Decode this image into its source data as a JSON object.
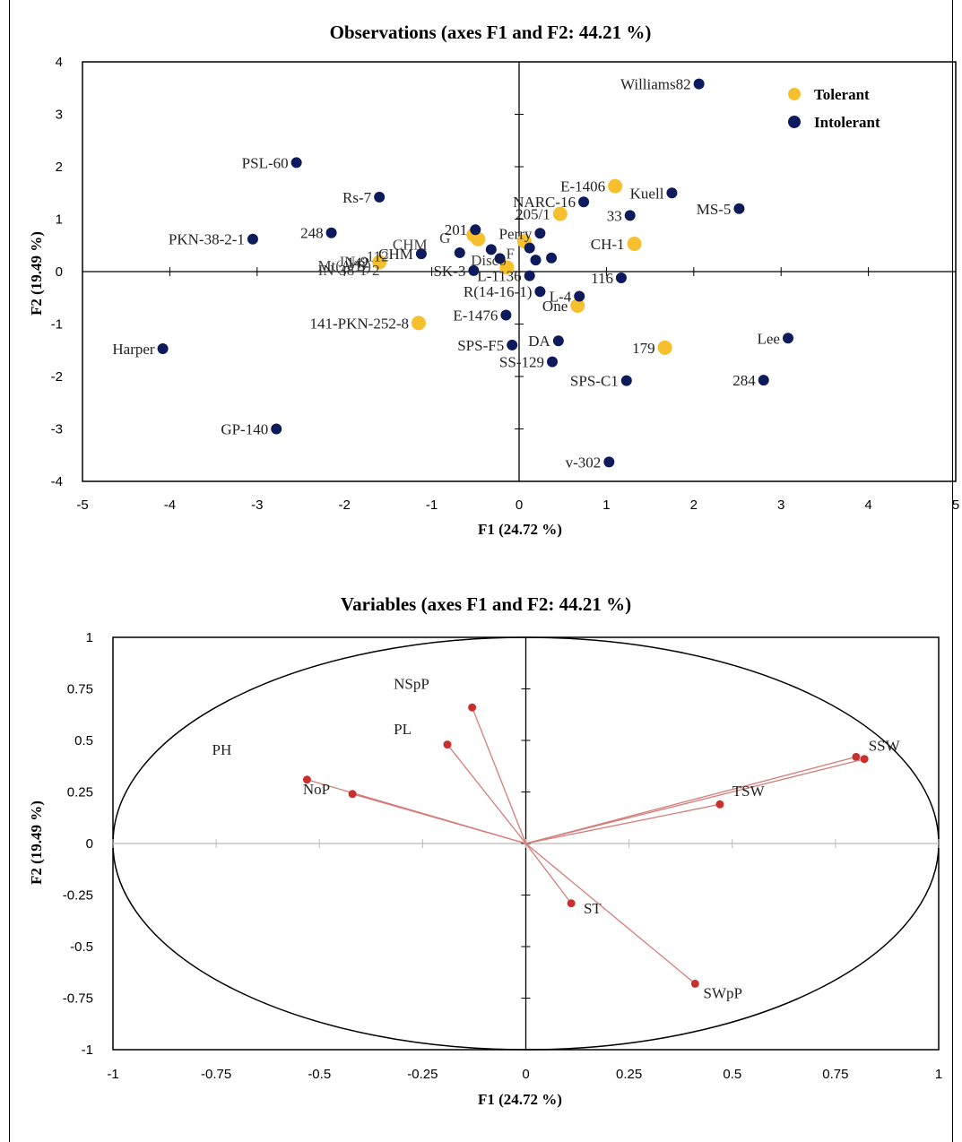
{
  "colors": {
    "tolerant": "#f5bf2e",
    "intolerant": "#0d1a5c",
    "vector": "#c7302f",
    "vector_line": "#d47c7a"
  },
  "chart_data": [
    {
      "type": "scatter",
      "title": "Observations (axes F1 and F2: 44.21 %)",
      "xlabel": "F1 (24.72 %)",
      "ylabel": "F2 (19.49 %)",
      "xlim": [
        -5,
        5
      ],
      "ylim": [
        -4,
        4
      ],
      "x_ticks": [
        "-5",
        "-4",
        "-3",
        "-2",
        "-1",
        "0",
        "1",
        "2",
        "3",
        "4",
        "5"
      ],
      "y_ticks": [
        "4",
        "3",
        "2",
        "1",
        "0",
        "-1",
        "-2",
        "-3",
        "-4"
      ],
      "legend": {
        "position": "top-right",
        "items": [
          {
            "name": "Tolerant",
            "key": "tolerant"
          },
          {
            "name": "Intolerant",
            "key": "intolerant"
          }
        ]
      },
      "series": [
        {
          "name": "Tolerant",
          "key": "tolerant",
          "points": [
            {
              "label": "E-1406",
              "x": 1.1,
              "y": 1.63
            },
            {
              "label": "205/1",
              "x": 0.47,
              "y": 1.1
            },
            {
              "label": "CH-1",
              "x": 1.32,
              "y": 0.53
            },
            {
              "label": "One",
              "x": 0.67,
              "y": -0.65
            },
            {
              "label": "179",
              "x": 1.67,
              "y": -1.45
            },
            {
              "label": "141-PKN-252-8",
              "x": -1.15,
              "y": -0.98
            },
            {
              "label": "142",
              "x": -1.6,
              "y": 0.18
            },
            {
              "label": "",
              "x": -0.52,
              "y": 0.7
            },
            {
              "label": "",
              "x": -0.47,
              "y": 0.62
            },
            {
              "label": "",
              "x": 0.06,
              "y": 0.58
            },
            {
              "label": "",
              "x": -0.14,
              "y": 0.08
            }
          ]
        },
        {
          "name": "Intolerant",
          "key": "intolerant",
          "points": [
            {
              "label": "Williams82",
              "x": 2.06,
              "y": 3.58
            },
            {
              "label": "PSL-60",
              "x": -2.55,
              "y": 2.08
            },
            {
              "label": "Rs-7",
              "x": -1.6,
              "y": 1.42
            },
            {
              "label": "Kuell",
              "x": 1.75,
              "y": 1.5
            },
            {
              "label": "NARC-16",
              "x": 0.74,
              "y": 1.33
            },
            {
              "label": "33",
              "x": 1.27,
              "y": 1.07
            },
            {
              "label": "MS-5",
              "x": 2.52,
              "y": 1.2
            },
            {
              "label": "248",
              "x": -2.15,
              "y": 0.74
            },
            {
              "label": "PKN-38-2-1",
              "x": -3.05,
              "y": 0.62
            },
            {
              "label": "201",
              "x": -0.5,
              "y": 0.8
            },
            {
              "label": "Perry",
              "x": 0.24,
              "y": 0.73
            },
            {
              "label": "CHM",
              "x": -1.12,
              "y": 0.34
            },
            {
              "label": "",
              "x": -0.68,
              "y": 0.36
            },
            {
              "label": "",
              "x": -0.32,
              "y": 0.42
            },
            {
              "label": "",
              "x": -0.22,
              "y": 0.25
            },
            {
              "label": "",
              "x": 0.12,
              "y": 0.45
            },
            {
              "label": "",
              "x": 0.19,
              "y": 0.22
            },
            {
              "label": "",
              "x": 0.37,
              "y": 0.26
            },
            {
              "label": "SK-3",
              "x": -0.52,
              "y": 0.02
            },
            {
              "label": "L-1136",
              "x": 0.12,
              "y": -0.08
            },
            {
              "label": "116",
              "x": 1.17,
              "y": -0.12
            },
            {
              "label": "R(14-16-1)",
              "x": 0.24,
              "y": -0.38
            },
            {
              "label": "L-4",
              "x": 0.69,
              "y": -0.47
            },
            {
              "label": "E-1476",
              "x": -0.15,
              "y": -0.83
            },
            {
              "label": "SPS-F5",
              "x": -0.08,
              "y": -1.4
            },
            {
              "label": "DA",
              "x": 0.45,
              "y": -1.32
            },
            {
              "label": "SS-129",
              "x": 0.38,
              "y": -1.72
            },
            {
              "label": "Harper",
              "x": -4.08,
              "y": -1.47
            },
            {
              "label": "Lee",
              "x": 3.08,
              "y": -1.27
            },
            {
              "label": "SPS-C1",
              "x": 1.23,
              "y": -2.08
            },
            {
              "label": "284",
              "x": 2.8,
              "y": -2.07
            },
            {
              "label": "GP-140",
              "x": -2.78,
              "y": -3.0
            },
            {
              "label": "v-302",
              "x": 1.03,
              "y": -3.63
            }
          ]
        }
      ],
      "overlap_labels": [
        {
          "label": "Mt(A/B)",
          "x": -2.0,
          "y": 0.12
        },
        {
          "label": "JN-9",
          "x": -1.9,
          "y": 0.2
        },
        {
          "label": "112",
          "x": -1.62,
          "y": 0.3
        },
        {
          "label": "IN-38-1-2",
          "x": -1.95,
          "y": 0.03
        },
        {
          "label": "CHM",
          "x": -1.25,
          "y": 0.52
        },
        {
          "label": "G",
          "x": -0.85,
          "y": 0.65
        },
        {
          "label": "Disco",
          "x": -0.35,
          "y": 0.22
        },
        {
          "label": "F",
          "x": -0.1,
          "y": 0.35
        }
      ]
    },
    {
      "type": "scatter",
      "title": "Variables (axes F1 and F2: 44.21 %)",
      "xlabel": "F1 (24.72 %)",
      "ylabel": "F2 (19.49 %)",
      "xlim": [
        -1,
        1
      ],
      "ylim": [
        -1,
        1
      ],
      "x_ticks": [
        "-1",
        "-0.75",
        "-0.5",
        "-0.25",
        "0",
        "0.25",
        "0.5",
        "0.75",
        "1"
      ],
      "y_ticks": [
        "1",
        "0.75",
        "0.5",
        "0.25",
        "0",
        "-0.25",
        "-0.5",
        "-0.75",
        "-1"
      ],
      "correlation_circle": true,
      "vectors": [
        {
          "label": "NSpP",
          "x": -0.13,
          "y": 0.66
        },
        {
          "label": "PL",
          "x": -0.19,
          "y": 0.48
        },
        {
          "label": "PH",
          "x": -0.53,
          "y": 0.31
        },
        {
          "label": "NoP",
          "x": -0.42,
          "y": 0.24
        },
        {
          "label": "SSW",
          "x": 0.8,
          "y": 0.42
        },
        {
          "label": "",
          "x": 0.82,
          "y": 0.41
        },
        {
          "label": "TSW",
          "x": 0.47,
          "y": 0.19
        },
        {
          "label": "ST",
          "x": 0.11,
          "y": -0.29
        },
        {
          "label": "SWpP",
          "x": 0.41,
          "y": -0.68
        }
      ],
      "vector_label_offsets": {
        "NSpP": [
          -0.19,
          0.09
        ],
        "PL": [
          -0.13,
          0.05
        ],
        "PH": [
          -0.23,
          0.12
        ],
        "NoP": [
          -0.12,
          0.0
        ],
        "SSW": [
          0.03,
          0.03
        ],
        "TSW": [
          0.03,
          0.04
        ],
        "ST": [
          0.03,
          -0.05
        ],
        "SWpP": [
          0.02,
          -0.07
        ]
      }
    }
  ]
}
